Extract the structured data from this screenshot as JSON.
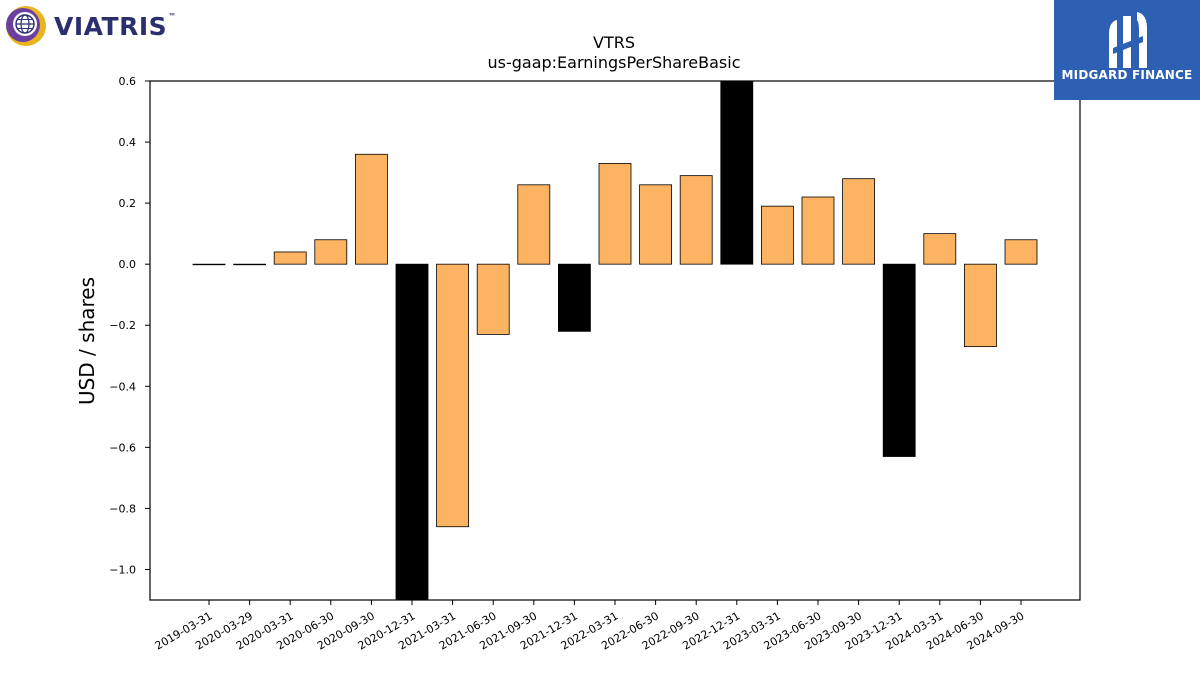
{
  "brand_left": {
    "name": "VIATRIS",
    "tm": "™",
    "icon": "viatris-globe-logo-icon"
  },
  "brand_right": {
    "name": "MIDGARD FINANCE",
    "icon": "midgard-monogram-icon"
  },
  "chart_data": {
    "type": "bar",
    "title": "VTRS",
    "subtitle": "us-gaap:EarningsPerShareBasic",
    "xlabel": "",
    "ylabel": "USD / shares",
    "ylim": [
      -1.1,
      0.6
    ],
    "yticks": [
      0.6,
      0.4,
      0.2,
      0.0,
      -0.2,
      -0.4,
      -0.6,
      -0.8,
      -1.0
    ],
    "ytick_labels": [
      "0.6",
      "0.4",
      "0.2",
      "0.0",
      "−0.2",
      "−0.4",
      "−0.6",
      "−0.8",
      "−1.0"
    ],
    "grid": false,
    "colors": {
      "quarterly": "#fdb462",
      "annual": "#000000",
      "edge": "#000000"
    },
    "categories": [
      "2019-03-31",
      "2020-03-29",
      "2020-03-31",
      "2020-06-30",
      "2020-09-30",
      "2020-12-31",
      "2021-03-31",
      "2021-06-30",
      "2021-09-30",
      "2021-12-31",
      "2022-03-31",
      "2022-06-30",
      "2022-09-30",
      "2022-12-31",
      "2023-03-31",
      "2023-06-30",
      "2023-09-30",
      "2023-12-31",
      "2024-03-31",
      "2024-06-30",
      "2024-09-30"
    ],
    "values": [
      0.0,
      0.0,
      0.04,
      0.08,
      0.36,
      -1.2,
      -0.86,
      -0.23,
      0.26,
      -0.22,
      0.33,
      0.26,
      0.29,
      0.6,
      0.19,
      0.22,
      0.28,
      -0.63,
      0.1,
      -0.27,
      0.08
    ],
    "period_type": [
      "quarter",
      "quarter",
      "quarter",
      "quarter",
      "quarter",
      "annual",
      "quarter",
      "quarter",
      "quarter",
      "annual",
      "quarter",
      "quarter",
      "quarter",
      "annual",
      "quarter",
      "quarter",
      "quarter",
      "annual",
      "quarter",
      "quarter",
      "quarter"
    ]
  }
}
